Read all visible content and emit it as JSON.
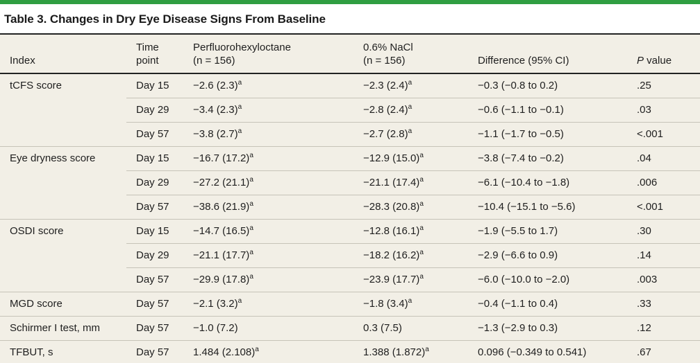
{
  "title": "Table 3. Changes in Dry Eye Disease Signs From Baseline",
  "colors": {
    "accent_green": "#2f9e41",
    "row_background": "#f2efe6",
    "rule_dark": "#1c1c1c",
    "rule_light": "#c6c3b8"
  },
  "columns": {
    "index": "Index",
    "time_point": "Time\npoint",
    "pfho": "Perfluorohexyloctane\n(n = 156)",
    "nacl": "0.6% NaCl\n(n = 156)",
    "difference": "Difference (95% CI)",
    "p_italic": "P",
    "p_rest": " value"
  },
  "rows": [
    {
      "index": "tCFS score",
      "time": "Day 15",
      "pfho": "−2.6 (2.3)",
      "pfho_sup": "a",
      "nacl": "−2.3 (2.4)",
      "nacl_sup": "a",
      "diff": "−0.3 (−0.8 to 0.2)",
      "p": ".25"
    },
    {
      "index": "",
      "time": "Day 29",
      "pfho": "−3.4 (2.3)",
      "pfho_sup": "a",
      "nacl": "−2.8 (2.4)",
      "nacl_sup": "a",
      "diff": "−0.6 (−1.1 to −0.1)",
      "p": ".03"
    },
    {
      "index": "",
      "time": "Day 57",
      "pfho": "−3.8 (2.7)",
      "pfho_sup": "a",
      "nacl": "−2.7 (2.8)",
      "nacl_sup": "a",
      "diff": "−1.1 (−1.7 to −0.5)",
      "p": "<.001"
    },
    {
      "index": "Eye dryness score",
      "time": "Day 15",
      "pfho": "−16.7 (17.2)",
      "pfho_sup": "a",
      "nacl": "−12.9 (15.0)",
      "nacl_sup": "a",
      "diff": "−3.8 (−7.4 to −0.2)",
      "p": ".04"
    },
    {
      "index": "",
      "time": "Day 29",
      "pfho": "−27.2 (21.1)",
      "pfho_sup": "a",
      "nacl": "−21.1 (17.4)",
      "nacl_sup": "a",
      "diff": "−6.1 (−10.4 to −1.8)",
      "p": ".006"
    },
    {
      "index": "",
      "time": "Day 57",
      "pfho": "−38.6 (21.9)",
      "pfho_sup": "a",
      "nacl": "−28.3 (20.8)",
      "nacl_sup": "a",
      "diff": "−10.4 (−15.1 to −5.6)",
      "p": "<.001"
    },
    {
      "index": "OSDI score",
      "time": "Day 15",
      "pfho": "−14.7 (16.5)",
      "pfho_sup": "a",
      "nacl": "−12.8 (16.1)",
      "nacl_sup": "a",
      "diff": "−1.9 (−5.5 to 1.7)",
      "p": ".30"
    },
    {
      "index": "",
      "time": "Day 29",
      "pfho": "−21.1 (17.7)",
      "pfho_sup": "a",
      "nacl": "−18.2 (16.2)",
      "nacl_sup": "a",
      "diff": "−2.9 (−6.6 to 0.9)",
      "p": ".14"
    },
    {
      "index": "",
      "time": "Day 57",
      "pfho": "−29.9 (17.8)",
      "pfho_sup": "a",
      "nacl": "−23.9 (17.7)",
      "nacl_sup": "a",
      "diff": "−6.0 (−10.0 to −2.0)",
      "p": ".003"
    },
    {
      "index": "MGD score",
      "time": "Day 57",
      "pfho": "−2.1 (3.2)",
      "pfho_sup": "a",
      "nacl": "−1.8 (3.4)",
      "nacl_sup": "a",
      "diff": "−0.4 (−1.1 to 0.4)",
      "p": ".33"
    },
    {
      "index": "Schirmer I test, mm",
      "time": "Day 57",
      "pfho": "−1.0 (7.2)",
      "pfho_sup": "",
      "nacl": "0.3 (7.5)",
      "nacl_sup": "",
      "diff": "−1.3 (−2.9 to 0.3)",
      "p": ".12"
    },
    {
      "index": "TFBUT, s",
      "time": "Day 57",
      "pfho": "1.484 (2.108)",
      "pfho_sup": "a",
      "nacl": "1.388 (1.872)",
      "nacl_sup": "a",
      "diff": "0.096 (−0.349 to 0.541)",
      "p": ".67"
    }
  ]
}
